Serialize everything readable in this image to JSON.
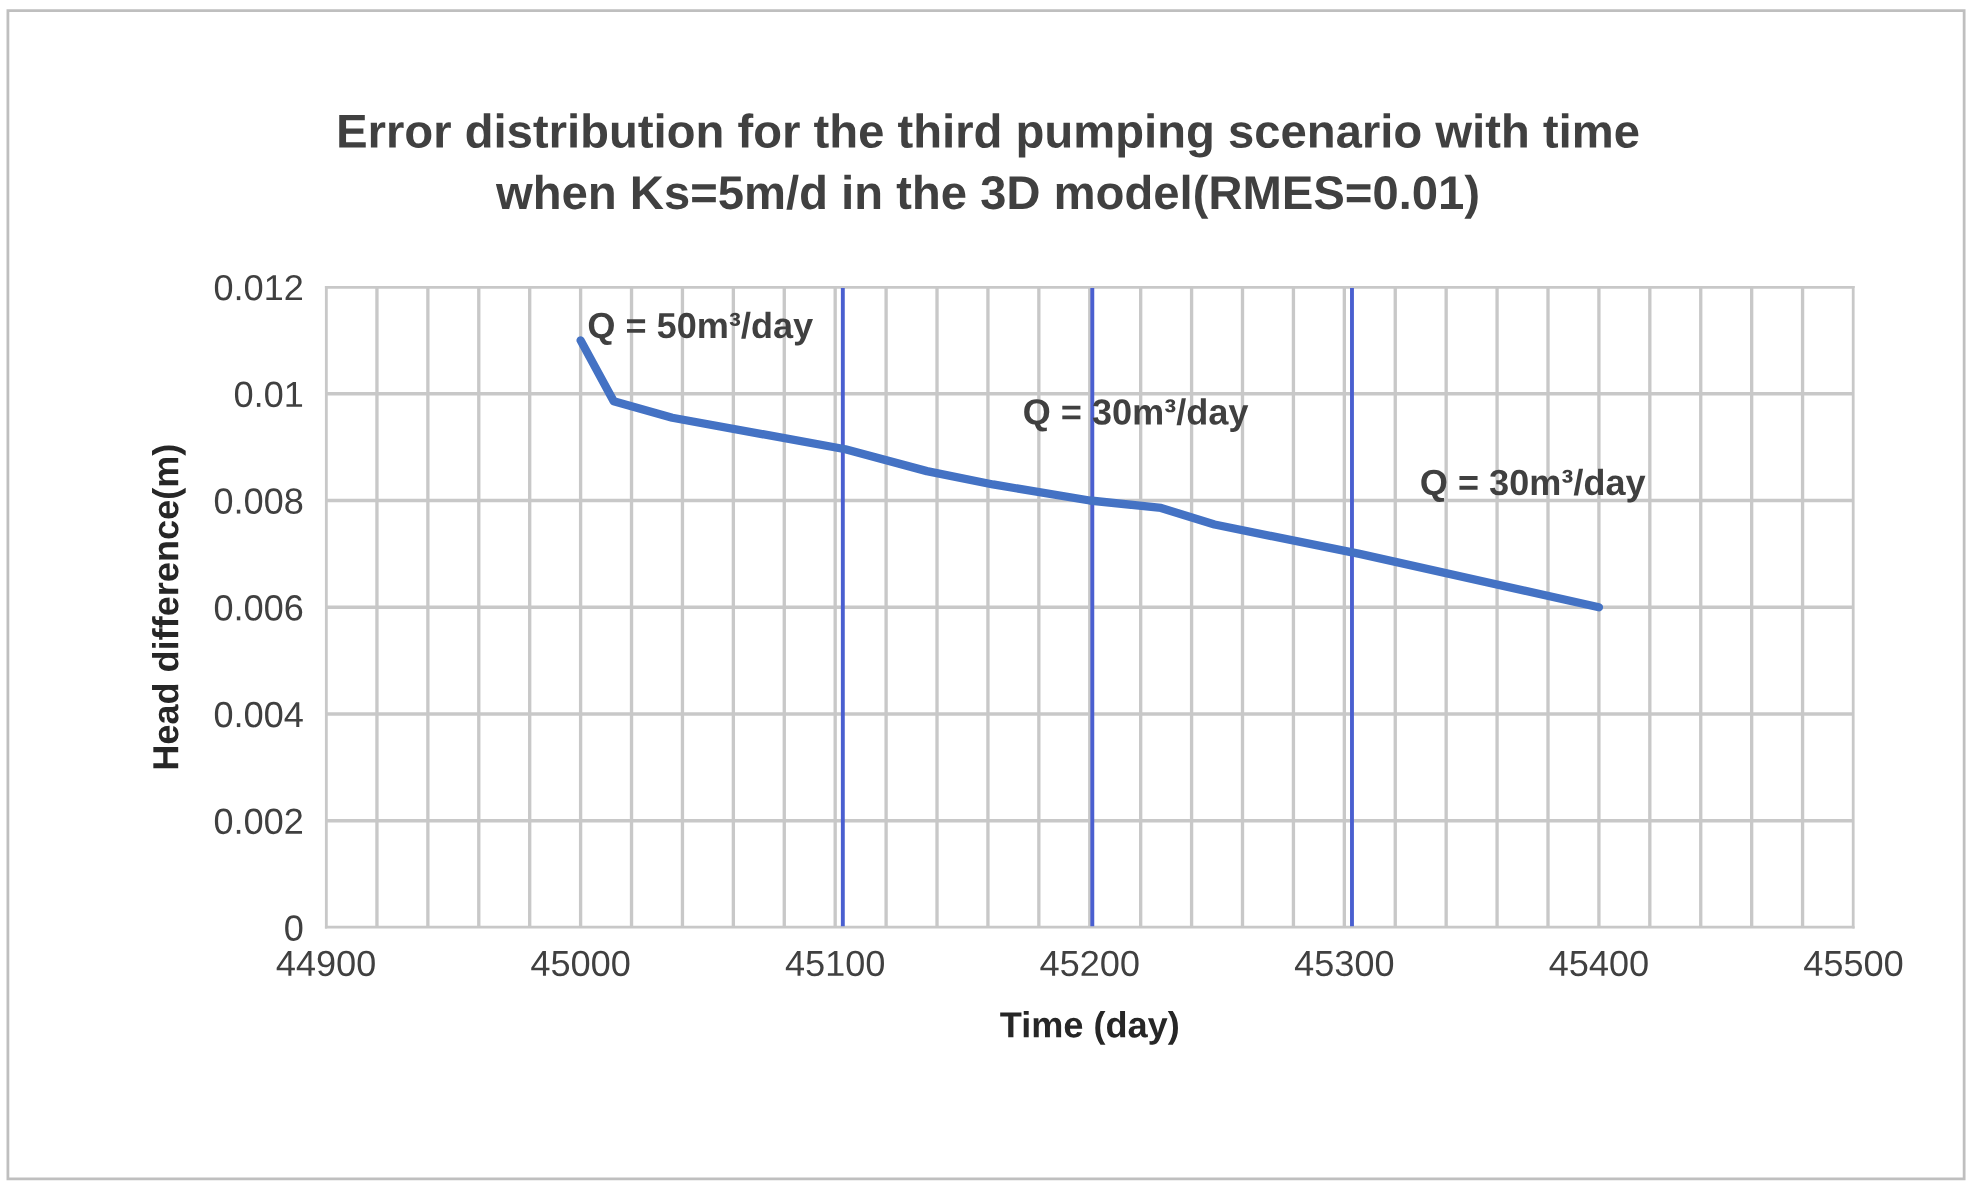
{
  "chart_data": {
    "type": "line",
    "title": "Error distribution for the third pumping scenario with time\nwhen Ks=5m/d in the 3D model(RMES=0.01)",
    "xlabel": "Time (day)",
    "ylabel": "Head difference(m)",
    "series": [
      {
        "color": "#4472c4",
        "x": [
          45000,
          45013,
          45036,
          45104,
          45136,
          45162,
          45200,
          45228,
          45249,
          45306,
          45400
        ],
        "values": [
          0.011,
          0.00986,
          0.00955,
          0.00896,
          0.00855,
          0.0083,
          0.008,
          0.00786,
          0.00755,
          0.007,
          0.006
        ]
      }
    ],
    "xlim": [
      44900,
      45500
    ],
    "xticks": [
      44900,
      {
        "value": 44920,
        "label": null
      },
      {
        "value": 44940,
        "label": null
      },
      {
        "value": 44960,
        "label": null
      },
      {
        "value": 44980,
        "label": null
      },
      45000,
      {
        "value": 45020,
        "label": null
      },
      {
        "value": 45040,
        "label": null
      },
      {
        "value": 45060,
        "label": null
      },
      {
        "value": 45080,
        "label": null
      },
      45100,
      {
        "value": 45120,
        "label": null
      },
      {
        "value": 45140,
        "label": null
      },
      {
        "value": 45160,
        "label": null
      },
      {
        "value": 45180,
        "label": null
      },
      45200,
      {
        "value": 45220,
        "label": null
      },
      {
        "value": 45240,
        "label": null
      },
      {
        "value": 45260,
        "label": null
      },
      {
        "value": 45280,
        "label": null
      },
      45300,
      {
        "value": 45320,
        "label": null
      },
      {
        "value": 45340,
        "label": null
      },
      {
        "value": 45360,
        "label": null
      },
      {
        "value": 45380,
        "label": null
      },
      45400,
      {
        "value": 45420,
        "label": null
      },
      {
        "value": 45440,
        "label": null
      },
      {
        "value": 45460,
        "label": null
      },
      {
        "value": 45480,
        "label": null
      },
      45500
    ],
    "ylim": [
      0,
      0.012
    ],
    "yticks": [
      {
        "value": 0,
        "label": "0"
      },
      0.002,
      0.004,
      0.006,
      0.008,
      0.01,
      0.012
    ],
    "grid": true,
    "marker": "none",
    "line_style": "solid",
    "legend": false,
    "ref_lines": [
      {
        "axis": "x",
        "value": 45103,
        "color": "#4a5fd0"
      },
      {
        "axis": "x",
        "value": 45201,
        "color": "#4a5fd0"
      },
      {
        "axis": "x",
        "value": 45303,
        "color": "#4a5fd0"
      }
    ],
    "annotations": [
      "Q = 50m³/day",
      "Q = 30m³/day",
      "Q = 30m³/day"
    ]
  }
}
